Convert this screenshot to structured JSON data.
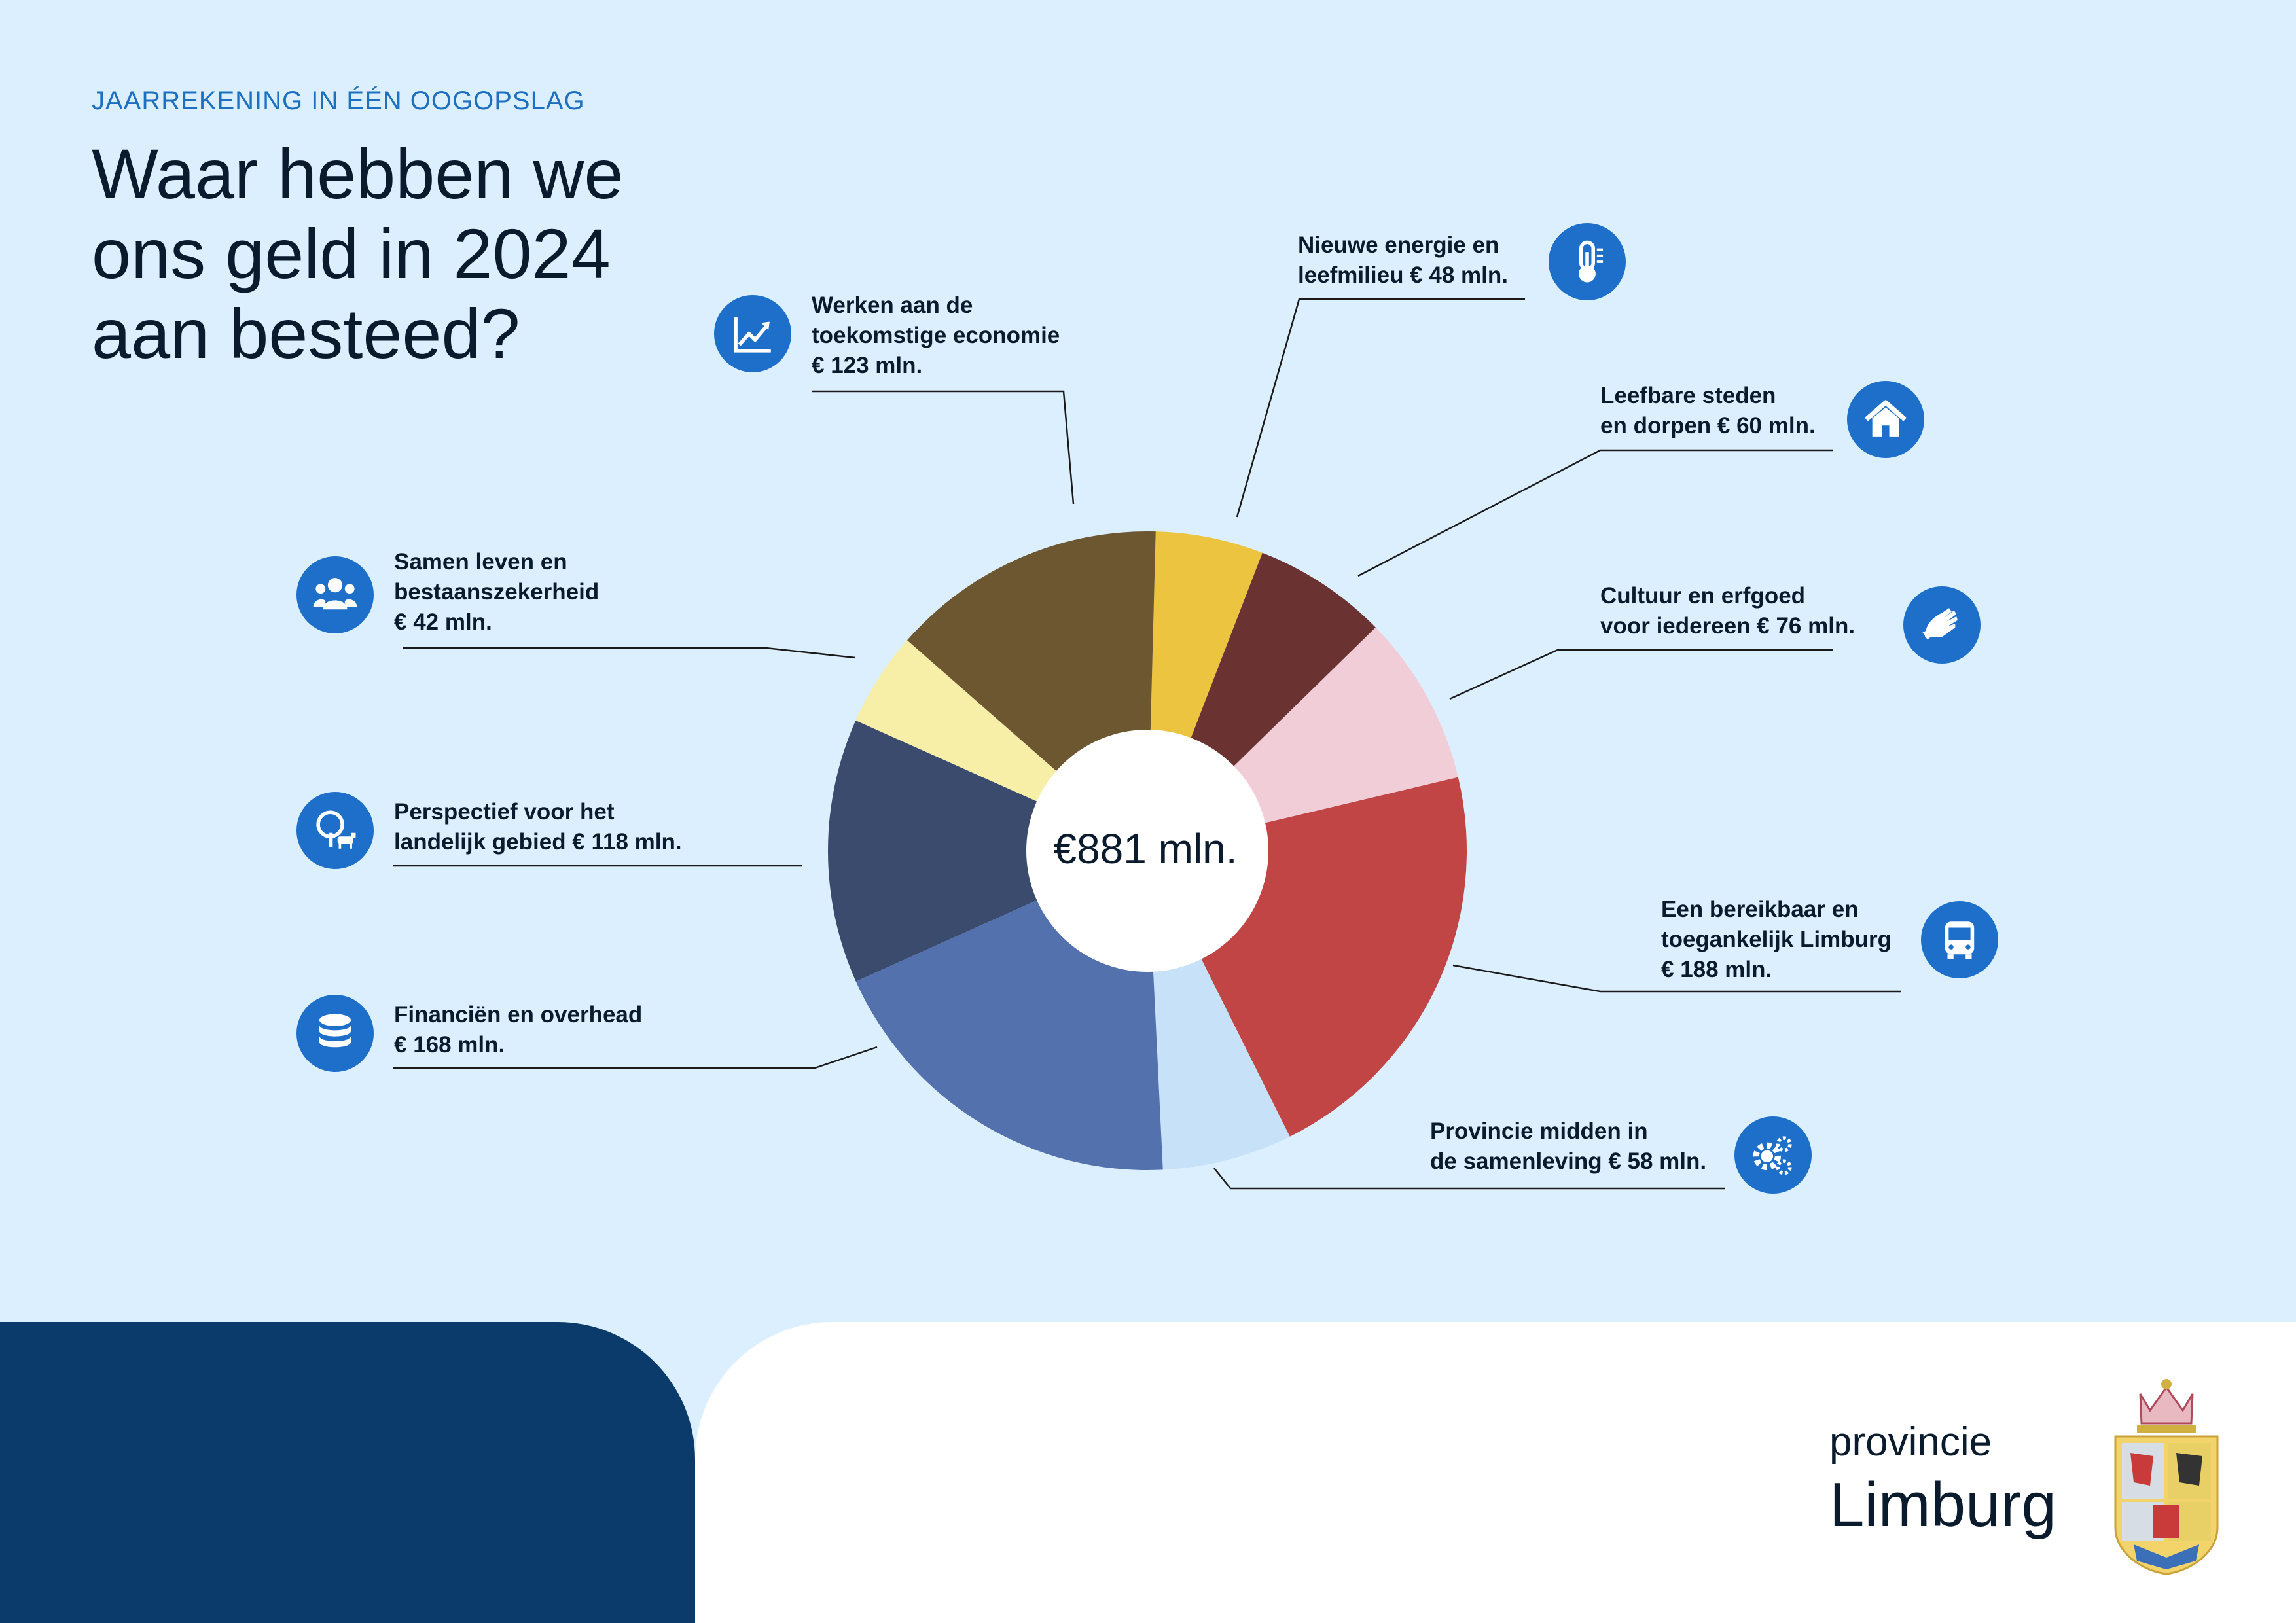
{
  "header": {
    "kicker": "JAARREKENING IN ÉÉN OOGOPSLAG",
    "title": "Waar hebben we ons geld in 2024 aan besteed?"
  },
  "chart_data": {
    "type": "pie",
    "center_label": "€881 mln.",
    "unit": "mln.",
    "slices": [
      {
        "label_lines": [
          "Nieuwe energie en",
          "leefmilieu € 48 mln."
        ],
        "value": 48,
        "color": "#edc440",
        "icon": "thermometer-icon"
      },
      {
        "label_lines": [
          "Leefbare steden",
          "en dorpen € 60 mln."
        ],
        "value": 60,
        "color": "#6b3232",
        "icon": "house-icon"
      },
      {
        "label_lines": [
          "Cultuur en erfgoed",
          "voor iedereen € 76 mln."
        ],
        "value": 76,
        "color": "#f1cdd7",
        "icon": "hands-icon"
      },
      {
        "label_lines": [
          "Een bereikbaar en",
          "toegankelijk Limburg",
          "€ 188 mln."
        ],
        "value": 188,
        "color": "#c24545",
        "icon": "bus-icon"
      },
      {
        "label_lines": [
          "Provincie midden in",
          "de samenleving € 58 mln."
        ],
        "value": 58,
        "color": "#c7e2f8",
        "icon": "gears-icon"
      },
      {
        "label_lines": [
          "Financiën en overhead",
          "€ 168 mln."
        ],
        "value": 168,
        "color": "#5271ad",
        "icon": "database-icon"
      },
      {
        "label_lines": [
          "Perspectief voor het",
          "landelijk gebied € 118 mln."
        ],
        "value": 118,
        "color": "#3a4b6e",
        "icon": "tree-cow-icon"
      },
      {
        "label_lines": [
          "Samen leven en",
          "bestaanszekerheid",
          "€ 42 mln."
        ],
        "value": 42,
        "color": "#f7eea8",
        "icon": "people-icon"
      },
      {
        "label_lines": [
          "Werken aan de",
          "toekomstige economie",
          "€ 123 mln."
        ],
        "value": 123,
        "color": "#6c5731",
        "icon": "chart-up-icon"
      }
    ]
  },
  "footer": {
    "logo_line1": "provincie",
    "logo_line2": "Limburg",
    "crest": "province-crest-logo"
  }
}
